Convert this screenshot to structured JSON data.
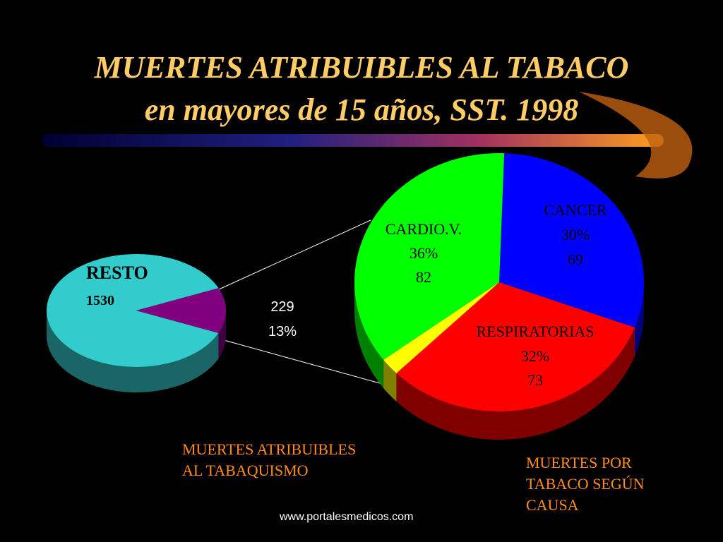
{
  "title": "MUERTES ATRIBUIBLES AL TABACO",
  "subtitle": "en mayores de 15 años, SST. 1998",
  "footer": "www.portalesmedicos.com",
  "chart_data": [
    {
      "type": "pie",
      "caption": "MUERTES ATRIBUIBLES AL TABAQUISMO",
      "categories": [
        "RESTO",
        null
      ],
      "values": [
        1530,
        229
      ],
      "percents": [
        null,
        13
      ],
      "percent_labels": [
        null,
        "13%"
      ],
      "colors": [
        "#33cccc",
        "#800080"
      ]
    },
    {
      "type": "pie",
      "caption": "MUERTES POR TABACO SEGÚN CAUSA",
      "categories": [
        "CANCER",
        "RESPIRATORIAS",
        null,
        "CARDIO.V."
      ],
      "values": [
        69,
        73,
        5,
        82
      ],
      "percents": [
        30,
        32,
        null,
        36
      ],
      "percent_labels": [
        "30%",
        "32%",
        null,
        "36%"
      ],
      "colors": [
        "#0000ff",
        "#ff0000",
        "#ffff00",
        "#00ff00"
      ]
    }
  ]
}
